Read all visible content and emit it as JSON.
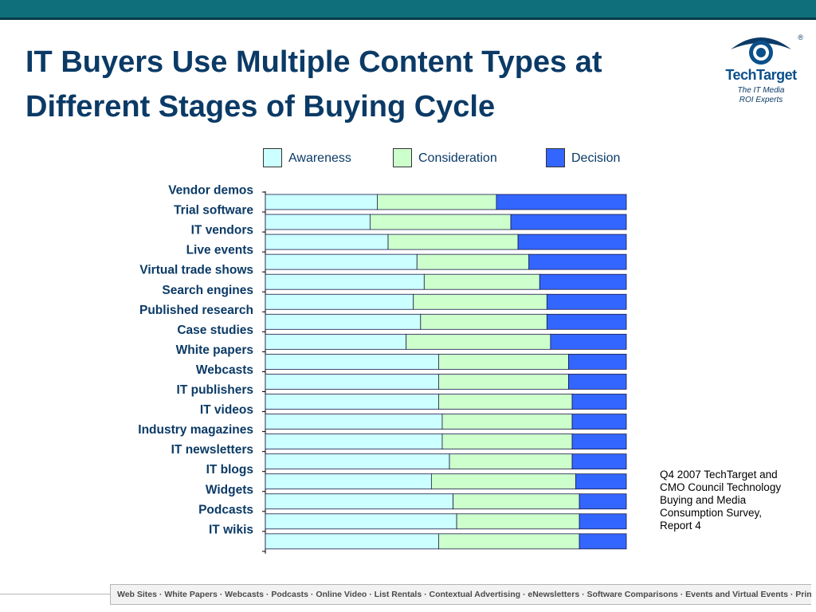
{
  "slide": {
    "title": "IT Buyers Use Multiple Content Types at Different Stages of Buying Cycle",
    "source_note": "Q4 2007 TechTarget and CMO Council Technology Buying and Media Consumption Survey, Report 4",
    "footer": "Web Sites · White Papers · Webcasts · Podcasts · Online Video · List Rentals · Contextual Advertising · eNewsletters · Software Comparisons · Events and Virtual Events · Print"
  },
  "logo": {
    "name": "TechTarget",
    "tagline_1": "The IT Media",
    "tagline_2": "ROI Experts",
    "mark": "®"
  },
  "colors": {
    "header": "#0f6f7a",
    "title": "#0b3a66",
    "awareness": "#ccffff",
    "consideration": "#ccffcc",
    "decision": "#3366ff"
  },
  "chart_data": {
    "type": "bar",
    "orientation": "horizontal",
    "stacked": true,
    "percent_stacked": true,
    "categories": [
      "Vendor demos",
      "Trial software",
      "IT vendors",
      "Live events",
      "Virtual trade shows",
      "Search engines",
      "Published research",
      "Case studies",
      "White papers",
      "Webcasts",
      "IT publishers",
      "IT videos",
      "Industry magazines",
      "IT newsletters",
      "IT blogs",
      "Widgets",
      "Podcasts",
      "IT wikis"
    ],
    "series": [
      {
        "name": "Awareness",
        "values": [
          31,
          29,
          34,
          42,
          44,
          41,
          43,
          39,
          48,
          48,
          48,
          49,
          49,
          51,
          46,
          52,
          53,
          48
        ]
      },
      {
        "name": "Consideration",
        "values": [
          33,
          39,
          36,
          31,
          32,
          37,
          35,
          40,
          36,
          36,
          37,
          36,
          36,
          34,
          40,
          35,
          34,
          39
        ]
      },
      {
        "name": "Decision",
        "values": [
          36,
          32,
          30,
          27,
          24,
          22,
          22,
          21,
          16,
          16,
          15,
          15,
          15,
          15,
          14,
          13,
          13,
          13
        ]
      }
    ],
    "xlim": [
      0,
      100
    ],
    "legend": "top"
  }
}
